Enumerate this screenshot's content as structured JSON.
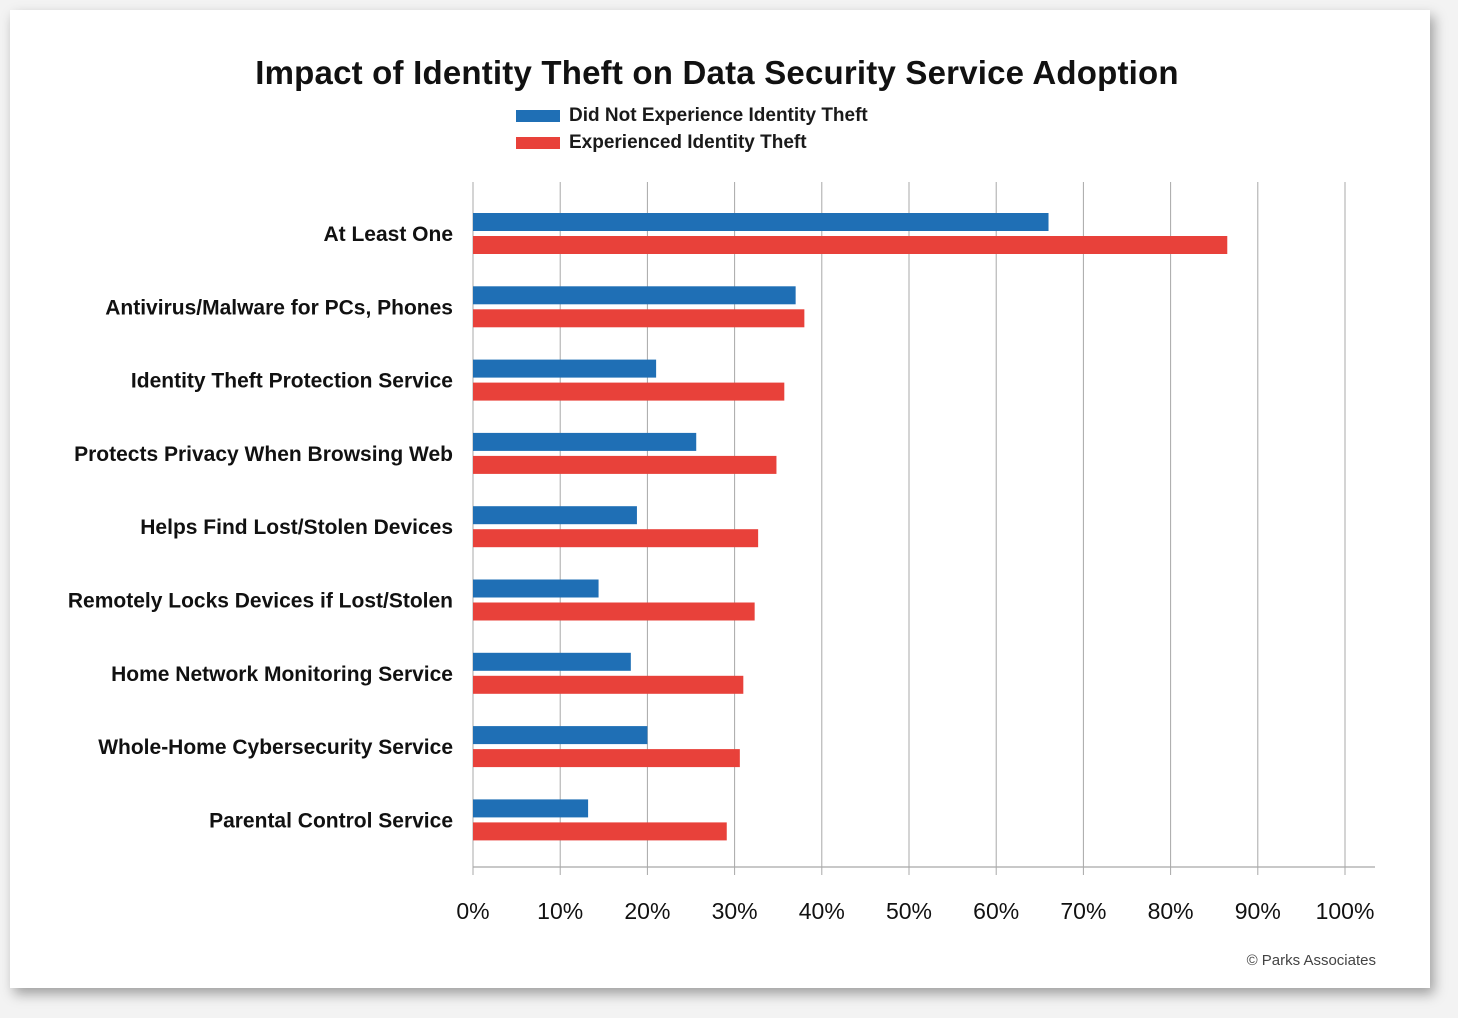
{
  "chart_data": {
    "type": "bar",
    "orientation": "horizontal",
    "title": "Impact of Identity Theft on Data Security Service Adoption",
    "categories": [
      "At Least One",
      "Antivirus/Malware for PCs, Phones",
      "Identity Theft Protection Service",
      "Protects Privacy When Browsing Web",
      "Helps Find Lost/Stolen Devices",
      "Remotely Locks Devices if Lost/Stolen",
      "Home Network Monitoring Service",
      "Whole-Home Cybersecurity Service",
      "Parental Control Service"
    ],
    "series": [
      {
        "name": "Did Not Experience Identity Theft",
        "color": "#1f6fb5",
        "values": [
          66,
          37,
          21,
          25.6,
          18.8,
          14.4,
          18.1,
          20,
          13.2
        ]
      },
      {
        "name": "Experienced Identity Theft",
        "color": "#e8413a",
        "values": [
          86.5,
          38,
          35.7,
          34.8,
          32.7,
          32.3,
          31,
          30.6,
          29.1
        ]
      }
    ],
    "xlim": [
      0,
      100
    ],
    "xticks": [
      0,
      10,
      20,
      30,
      40,
      50,
      60,
      70,
      80,
      90,
      100
    ],
    "xtick_labels": [
      "0%",
      "10%",
      "20%",
      "30%",
      "40%",
      "50%",
      "60%",
      "70%",
      "80%",
      "90%",
      "100%"
    ],
    "xlabel": "",
    "ylabel": "",
    "grid": "vertical",
    "legend_position": "top-center"
  },
  "credit": "© Parks Associates"
}
